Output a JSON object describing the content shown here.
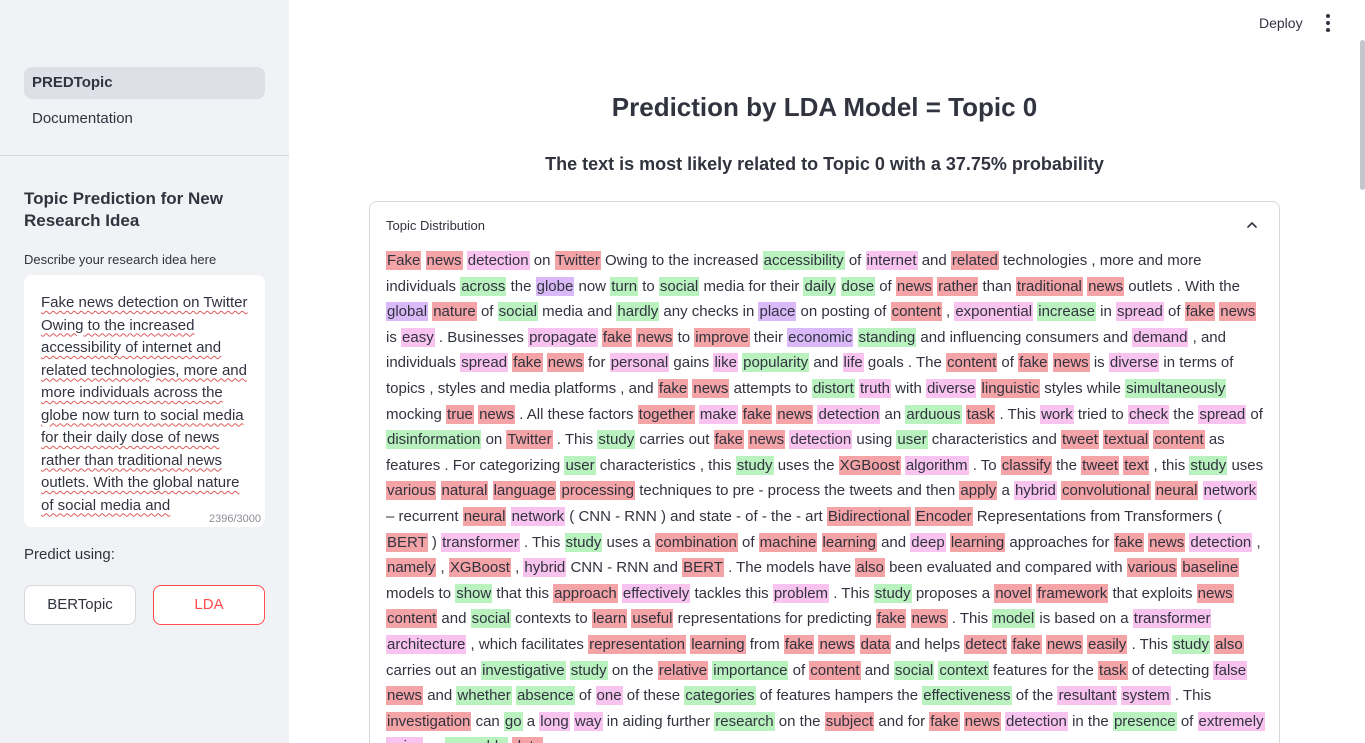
{
  "sidebar": {
    "nav": [
      {
        "label": "PREDTopic",
        "active": true
      },
      {
        "label": "Documentation",
        "active": false
      }
    ],
    "title": "Topic Prediction for New Research Idea",
    "input_label": "Describe your research idea here",
    "input_value": "Fake news detection on Twitter Owing to the increased accessibility of internet and related technologies, more and more individuals across the globe now turn to social media for their daily dose of news rather than traditional news outlets. With the global nature of social media and",
    "char_count": "2396/3000",
    "predict_label": "Predict using:",
    "buttons": {
      "bert": "BERTopic",
      "lda": "LDA"
    }
  },
  "header": {
    "deploy": "Deploy",
    "menu_icon": "vertical-ellipsis-icon"
  },
  "main": {
    "title": "Prediction by LDA Model = Topic 0",
    "subtitle": "The text is most likely related to Topic 0 with a 37.75% probability",
    "expander": {
      "title": "Topic Distribution",
      "icon": "chevron-up-icon"
    },
    "colors": {
      "red": "#f4a3a6",
      "pink": "#f9c3ef",
      "green": "#b9f2bf",
      "violet": "#d9b9f8",
      "accent": "#ff4b4b"
    },
    "tokens": [
      [
        "Fake",
        "r"
      ],
      [
        "news",
        "r"
      ],
      [
        "detection",
        "p"
      ],
      [
        "on",
        ""
      ],
      [
        "Twitter",
        "r"
      ],
      [
        "Owing to the increased",
        ""
      ],
      [
        "accessibility",
        "g"
      ],
      [
        "of",
        ""
      ],
      [
        "internet",
        "p"
      ],
      [
        "and",
        ""
      ],
      [
        "related",
        "r"
      ],
      [
        "technologies , more and more individuals",
        ""
      ],
      [
        "across",
        "g"
      ],
      [
        "the",
        ""
      ],
      [
        "globe",
        "v"
      ],
      [
        "now",
        ""
      ],
      [
        "turn",
        "g"
      ],
      [
        "to",
        ""
      ],
      [
        "social",
        "g"
      ],
      [
        "media for their",
        ""
      ],
      [
        "daily",
        "g"
      ],
      [
        "dose",
        "g"
      ],
      [
        "of",
        ""
      ],
      [
        "news",
        "r"
      ],
      [
        "rather",
        "r"
      ],
      [
        "than",
        ""
      ],
      [
        "traditional",
        "r"
      ],
      [
        "news",
        "r"
      ],
      [
        "outlets . With the",
        ""
      ],
      [
        "global",
        "v"
      ],
      [
        "nature",
        "r"
      ],
      [
        "of",
        ""
      ],
      [
        "social",
        "g"
      ],
      [
        "media and",
        ""
      ],
      [
        "hardly",
        "g"
      ],
      [
        "any checks in",
        ""
      ],
      [
        "place",
        "v"
      ],
      [
        "on posting of",
        ""
      ],
      [
        "content",
        "r"
      ],
      [
        ",",
        ""
      ],
      [
        "exponential",
        "p"
      ],
      [
        "increase",
        "g"
      ],
      [
        "in",
        ""
      ],
      [
        "spread",
        "p"
      ],
      [
        "of",
        ""
      ],
      [
        "fake",
        "r"
      ],
      [
        "news",
        "r"
      ],
      [
        "is",
        ""
      ],
      [
        "easy",
        "p"
      ],
      [
        ". Businesses",
        ""
      ],
      [
        "propagate",
        "p"
      ],
      [
        "fake",
        "r"
      ],
      [
        "news",
        "r"
      ],
      [
        "to",
        ""
      ],
      [
        "improve",
        "r"
      ],
      [
        "their",
        ""
      ],
      [
        "economic",
        "v"
      ],
      [
        "standing",
        "g"
      ],
      [
        "and influencing consumers and",
        ""
      ],
      [
        "demand",
        "p"
      ],
      [
        ", and",
        ""
      ],
      [
        "individuals",
        ""
      ],
      [
        "spread",
        "p"
      ],
      [
        "fake",
        "r"
      ],
      [
        "news",
        "r"
      ],
      [
        "for",
        ""
      ],
      [
        "personal",
        "p"
      ],
      [
        "gains",
        ""
      ],
      [
        "like",
        "p"
      ],
      [
        "popularity",
        "g"
      ],
      [
        "and",
        ""
      ],
      [
        "life",
        "p"
      ],
      [
        "goals . The",
        ""
      ],
      [
        "content",
        "r"
      ],
      [
        "of",
        ""
      ],
      [
        "fake",
        "r"
      ],
      [
        "news",
        "r"
      ],
      [
        "is",
        ""
      ],
      [
        "diverse",
        "p"
      ],
      [
        "in terms of topics ,",
        ""
      ],
      [
        "styles and media platforms , and",
        ""
      ],
      [
        "fake",
        "r"
      ],
      [
        "news",
        "r"
      ],
      [
        "attempts to",
        ""
      ],
      [
        "distort",
        "g"
      ],
      [
        "truth",
        "p"
      ],
      [
        "with",
        ""
      ],
      [
        "diverse",
        "p"
      ],
      [
        "linguistic",
        "r"
      ],
      [
        "styles while",
        ""
      ],
      [
        "simultaneously",
        "g"
      ],
      [
        "mocking",
        ""
      ],
      [
        "true",
        "r"
      ],
      [
        "news",
        "r"
      ],
      [
        ". All these factors",
        ""
      ],
      [
        "together",
        "r"
      ],
      [
        "make",
        "p"
      ],
      [
        "fake",
        "r"
      ],
      [
        "news",
        "r"
      ],
      [
        "detection",
        "p"
      ],
      [
        "an",
        ""
      ],
      [
        "arduous",
        "g"
      ],
      [
        "task",
        "r"
      ],
      [
        ". This",
        ""
      ],
      [
        "work",
        "p"
      ],
      [
        "tried to",
        ""
      ],
      [
        "check",
        "p"
      ],
      [
        "the",
        ""
      ],
      [
        "spread",
        "p"
      ],
      [
        "of",
        ""
      ],
      [
        "disinformation",
        "g"
      ],
      [
        "on",
        ""
      ],
      [
        "Twitter",
        "r"
      ],
      [
        ". This",
        ""
      ],
      [
        "study",
        "g"
      ],
      [
        "carries out",
        ""
      ],
      [
        "fake",
        "r"
      ],
      [
        "news",
        "r"
      ],
      [
        "detection",
        "p"
      ],
      [
        "using",
        ""
      ],
      [
        "user",
        "g"
      ],
      [
        "characteristics and",
        ""
      ],
      [
        "tweet",
        "r"
      ],
      [
        "textual",
        "r"
      ],
      [
        "content",
        "r"
      ],
      [
        "as features . For",
        ""
      ],
      [
        "categorizing",
        ""
      ],
      [
        "user",
        "g"
      ],
      [
        "characteristics , this",
        ""
      ],
      [
        "study",
        "g"
      ],
      [
        "uses the",
        ""
      ],
      [
        "XGBoost",
        "r"
      ],
      [
        "algorithm",
        "p"
      ],
      [
        ". To",
        ""
      ],
      [
        "classify",
        "r"
      ],
      [
        "the",
        ""
      ],
      [
        "tweet",
        "r"
      ],
      [
        "text",
        "r"
      ],
      [
        ", this",
        ""
      ],
      [
        "study",
        "g"
      ],
      [
        "uses",
        ""
      ],
      [
        "various",
        "r"
      ],
      [
        "natural",
        "r"
      ],
      [
        "language",
        "r"
      ],
      [
        "processing",
        "r"
      ],
      [
        "techniques to pre - process the tweets and then",
        ""
      ],
      [
        "apply",
        "r"
      ],
      [
        "a",
        ""
      ],
      [
        "hybrid",
        "p"
      ],
      [
        "convolutional",
        "r"
      ],
      [
        "neural",
        "r"
      ],
      [
        "network",
        "p"
      ],
      [
        "– recurrent",
        ""
      ],
      [
        "neural",
        "r"
      ],
      [
        "network",
        "p"
      ],
      [
        "( CNN - RNN ) and state - of - the - art",
        ""
      ],
      [
        "Bidirectional",
        "r"
      ],
      [
        "Encoder",
        "r"
      ],
      [
        "Representations from Transformers (",
        ""
      ],
      [
        "BERT",
        "r"
      ],
      [
        ")",
        ""
      ],
      [
        "transformer",
        "p"
      ],
      [
        ". This",
        ""
      ],
      [
        "study",
        "g"
      ],
      [
        "uses a",
        ""
      ],
      [
        "combination",
        "r"
      ],
      [
        "of",
        ""
      ],
      [
        "machine",
        "r"
      ],
      [
        "learning",
        "r"
      ],
      [
        "and",
        ""
      ],
      [
        "deep",
        "p"
      ],
      [
        "learning",
        "r"
      ],
      [
        "approaches for",
        ""
      ],
      [
        "fake",
        "r"
      ],
      [
        "news",
        "r"
      ],
      [
        "detection",
        "p"
      ],
      [
        ",",
        ""
      ],
      [
        "namely",
        "r"
      ],
      [
        ",",
        ""
      ],
      [
        "XGBoost",
        "r"
      ],
      [
        ",",
        ""
      ],
      [
        "hybrid",
        "p"
      ],
      [
        "CNN - RNN and",
        ""
      ],
      [
        "BERT",
        "r"
      ],
      [
        ". The models have",
        ""
      ],
      [
        "also",
        "r"
      ],
      [
        "been evaluated and compared with",
        ""
      ],
      [
        "various",
        "r"
      ],
      [
        "baseline",
        "r"
      ],
      [
        "models to",
        ""
      ],
      [
        "show",
        "g"
      ],
      [
        "that this",
        ""
      ],
      [
        "approach",
        "r"
      ],
      [
        "effectively",
        "p"
      ],
      [
        "tackles this",
        ""
      ],
      [
        "problem",
        "p"
      ],
      [
        ". This",
        ""
      ],
      [
        "study",
        "g"
      ],
      [
        "proposes a",
        ""
      ],
      [
        "novel",
        "r"
      ],
      [
        "framework",
        "r"
      ],
      [
        "that exploits",
        ""
      ],
      [
        "news",
        "r"
      ],
      [
        "content",
        "r"
      ],
      [
        "and",
        ""
      ],
      [
        "social",
        "g"
      ],
      [
        "contexts to",
        ""
      ],
      [
        "learn",
        "r"
      ],
      [
        "useful",
        "r"
      ],
      [
        "representations for predicting",
        ""
      ],
      [
        "fake",
        "r"
      ],
      [
        "news",
        "r"
      ],
      [
        ". This",
        ""
      ],
      [
        "model",
        "g"
      ],
      [
        "is based on a",
        ""
      ],
      [
        "transformer",
        "p"
      ],
      [
        "architecture",
        "p"
      ],
      [
        ", which facilitates",
        ""
      ],
      [
        "representation",
        "r"
      ],
      [
        "learning",
        "r"
      ],
      [
        "from",
        ""
      ],
      [
        "fake",
        "r"
      ],
      [
        "news",
        "r"
      ],
      [
        "data",
        "r"
      ],
      [
        "and helps",
        ""
      ],
      [
        "detect",
        "r"
      ],
      [
        "fake",
        "r"
      ],
      [
        "news",
        "r"
      ],
      [
        "easily",
        "r"
      ],
      [
        ". This",
        ""
      ],
      [
        "study",
        "g"
      ],
      [
        "also",
        "r"
      ],
      [
        "carries out an",
        ""
      ],
      [
        "investigative",
        "g"
      ],
      [
        "study",
        "g"
      ],
      [
        "on the",
        ""
      ],
      [
        "relative",
        "r"
      ],
      [
        "importance",
        "g"
      ],
      [
        "of",
        ""
      ],
      [
        "content",
        "r"
      ],
      [
        "and",
        ""
      ],
      [
        "social",
        "g"
      ],
      [
        "context",
        "g"
      ],
      [
        "features for the",
        ""
      ],
      [
        "task",
        "r"
      ],
      [
        "of detecting",
        ""
      ],
      [
        "false",
        "p"
      ],
      [
        "news",
        "r"
      ],
      [
        "and",
        ""
      ],
      [
        "whether",
        "g"
      ],
      [
        "absence",
        "g"
      ],
      [
        "of",
        ""
      ],
      [
        "one",
        "p"
      ],
      [
        "of these",
        ""
      ],
      [
        "categories",
        "g"
      ],
      [
        "of features hampers the",
        ""
      ],
      [
        "effectiveness",
        "g"
      ],
      [
        "of the",
        ""
      ],
      [
        "resultant",
        "p"
      ],
      [
        "system",
        "p"
      ],
      [
        ". This",
        ""
      ],
      [
        "investigation",
        "r"
      ],
      [
        "can",
        ""
      ],
      [
        "go",
        "g"
      ],
      [
        "a",
        ""
      ],
      [
        "long",
        "p"
      ],
      [
        "way",
        "p"
      ],
      [
        "in aiding further",
        ""
      ],
      [
        "research",
        "g"
      ],
      [
        "on the",
        ""
      ],
      [
        "subject",
        "r"
      ],
      [
        "and for",
        ""
      ],
      [
        "fake",
        "r"
      ],
      [
        "news",
        "r"
      ],
      [
        "detection",
        "p"
      ],
      [
        "in the",
        ""
      ],
      [
        "presence",
        "g"
      ],
      [
        "of",
        ""
      ],
      [
        "extremely",
        "p"
      ],
      [
        "noisy",
        "p"
      ],
      [
        "or",
        ""
      ],
      [
        "unusable",
        "g"
      ],
      [
        "data",
        "r"
      ],
      [
        ".",
        ""
      ]
    ]
  }
}
